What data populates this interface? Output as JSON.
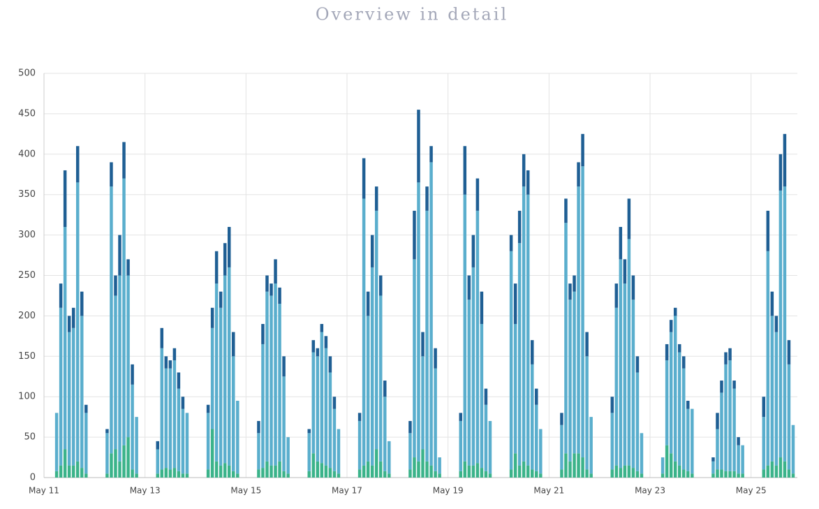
{
  "chart_data": {
    "type": "stacked_bar",
    "title": "Overview in detail",
    "x": [
      6,
      8,
      10,
      12,
      14,
      16,
      18,
      20,
      30,
      32,
      34,
      36,
      38,
      40,
      42,
      44,
      54,
      56,
      58,
      60,
      62,
      64,
      66,
      68,
      78,
      80,
      82,
      84,
      86,
      88,
      90,
      92,
      102,
      104,
      106,
      108,
      110,
      112,
      114,
      116,
      126,
      128,
      130,
      132,
      134,
      136,
      138,
      140,
      150,
      152,
      154,
      156,
      158,
      160,
      162,
      164,
      174,
      176,
      178,
      180,
      182,
      184,
      186,
      188,
      198,
      200,
      202,
      204,
      206,
      208,
      210,
      212,
      222,
      224,
      226,
      228,
      230,
      232,
      234,
      236,
      246,
      248,
      250,
      252,
      254,
      256,
      258,
      260,
      270,
      272,
      274,
      276,
      278,
      280,
      282,
      284,
      294,
      296,
      298,
      300,
      302,
      304,
      306,
      308,
      318,
      320,
      322,
      324,
      326,
      328,
      330,
      332,
      342,
      344,
      346,
      348,
      350,
      352,
      354,
      356
    ],
    "series": [
      {
        "color": "#3bb38a",
        "values": [
          8,
          15,
          35,
          15,
          15,
          20,
          12,
          5,
          5,
          30,
          35,
          20,
          40,
          50,
          10,
          5,
          5,
          10,
          12,
          10,
          12,
          8,
          5,
          5,
          10,
          60,
          20,
          15,
          18,
          15,
          8,
          5,
          10,
          12,
          20,
          15,
          15,
          20,
          8,
          5,
          8,
          30,
          20,
          18,
          15,
          12,
          8,
          5,
          10,
          15,
          20,
          15,
          35,
          20,
          8,
          5,
          10,
          25,
          20,
          35,
          20,
          15,
          8,
          5,
          8,
          20,
          15,
          15,
          18,
          12,
          8,
          5,
          10,
          30,
          15,
          20,
          15,
          10,
          8,
          5,
          10,
          30,
          20,
          30,
          30,
          25,
          10,
          5,
          10,
          15,
          12,
          15,
          15,
          12,
          8,
          5,
          5,
          40,
          30,
          20,
          15,
          10,
          8,
          5,
          5,
          10,
          10,
          8,
          8,
          8,
          5,
          5,
          10,
          15,
          20,
          15,
          25,
          20,
          10,
          5
        ]
      },
      {
        "color": "#5aaecd",
        "values": [
          72,
          195,
          275,
          165,
          170,
          345,
          188,
          75,
          50,
          330,
          190,
          230,
          330,
          200,
          105,
          70,
          30,
          150,
          123,
          125,
          133,
          102,
          80,
          75,
          70,
          125,
          220,
          195,
          232,
          245,
          142,
          90,
          45,
          153,
          210,
          210,
          225,
          195,
          117,
          45,
          47,
          125,
          130,
          162,
          145,
          118,
          77,
          55,
          60,
          330,
          180,
          245,
          295,
          205,
          92,
          40,
          45,
          245,
          345,
          115,
          310,
          375,
          127,
          20,
          62,
          330,
          205,
          245,
          312,
          178,
          82,
          65,
          270,
          160,
          275,
          340,
          335,
          130,
          82,
          55,
          55,
          285,
          200,
          200,
          330,
          360,
          140,
          70,
          70,
          195,
          258,
          225,
          280,
          208,
          122,
          50,
          20,
          105,
          150,
          180,
          140,
          125,
          77,
          80,
          15,
          50,
          95,
          132,
          137,
          102,
          35,
          35,
          65,
          265,
          180,
          165,
          330,
          340,
          130,
          60
        ]
      },
      {
        "color": "#1f5f94",
        "values": [
          0,
          30,
          70,
          20,
          25,
          45,
          30,
          10,
          5,
          30,
          25,
          50,
          45,
          20,
          25,
          0,
          10,
          25,
          15,
          10,
          15,
          20,
          15,
          0,
          10,
          25,
          40,
          20,
          40,
          50,
          30,
          0,
          15,
          25,
          20,
          15,
          30,
          20,
          25,
          0,
          5,
          15,
          10,
          10,
          15,
          20,
          15,
          0,
          10,
          50,
          30,
          40,
          30,
          25,
          20,
          0,
          15,
          60,
          90,
          30,
          30,
          20,
          25,
          0,
          10,
          60,
          30,
          40,
          40,
          40,
          20,
          0,
          20,
          50,
          40,
          40,
          30,
          30,
          20,
          0,
          15,
          30,
          20,
          20,
          30,
          40,
          30,
          0,
          20,
          30,
          40,
          30,
          50,
          30,
          20,
          0,
          0,
          20,
          15,
          10,
          10,
          15,
          10,
          0,
          5,
          20,
          15,
          15,
          15,
          10,
          10,
          0,
          25,
          50,
          30,
          20,
          45,
          65,
          30,
          0
        ]
      }
    ],
    "xlim": [
      0,
      358
    ],
    "xticks": [
      {
        "value": 0,
        "label": "May 11"
      },
      {
        "value": 48,
        "label": "May 13"
      },
      {
        "value": 96,
        "label": "May 15"
      },
      {
        "value": 144,
        "label": "May 17"
      },
      {
        "value": 192,
        "label": "May 19"
      },
      {
        "value": 240,
        "label": "May 21"
      },
      {
        "value": 288,
        "label": "May 23"
      },
      {
        "value": 336,
        "label": "May 25"
      }
    ],
    "ylim": [
      0,
      500
    ],
    "yticks": [
      0,
      50,
      100,
      150,
      200,
      250,
      300,
      350,
      400,
      450,
      500
    ],
    "grid": true
  }
}
